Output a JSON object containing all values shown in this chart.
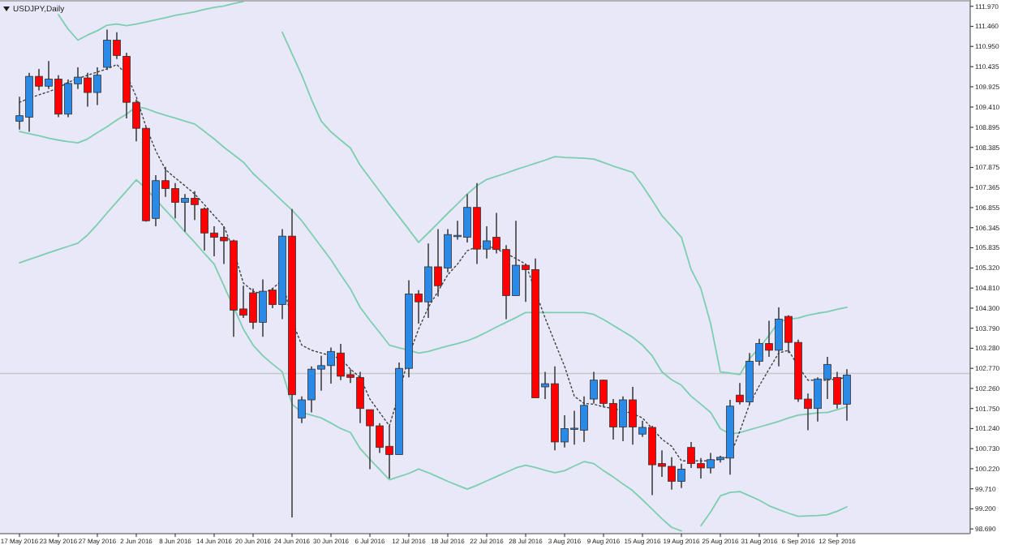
{
  "chart_data": {
    "type": "candlestick",
    "title": "USDJPY,Daily",
    "categories": [
      "17 May 2016",
      null,
      null,
      null,
      "23 May 2016",
      null,
      null,
      null,
      "27 May 2016",
      null,
      null,
      null,
      "2 Jun 2016",
      null,
      null,
      null,
      "8 Jun 2016",
      null,
      null,
      null,
      "14 Jun 2016",
      null,
      null,
      null,
      "20 Jun 2016",
      null,
      null,
      null,
      "24 Jun 2016",
      null,
      null,
      null,
      "30 Jun 2016",
      null,
      null,
      null,
      "6 Jul 2016",
      null,
      null,
      null,
      "12 Jul 2016",
      null,
      null,
      null,
      "18 Jul 2016",
      null,
      null,
      null,
      "22 Jul 2016",
      null,
      null,
      null,
      "28 Jul 2016",
      null,
      null,
      null,
      "3 Aug 2016",
      null,
      null,
      null,
      "9 Aug 2016",
      null,
      null,
      null,
      "15 Aug 2016",
      null,
      null,
      null,
      "19 Aug 2016",
      null,
      null,
      null,
      "25 Aug 2016",
      null,
      null,
      null,
      "31 Aug 2016",
      null,
      null,
      null,
      "6 Sep 2016",
      null,
      null,
      null,
      "12 Sep 2016",
      null
    ],
    "ohlc": [
      [
        109.05,
        109.67,
        108.84,
        109.19
      ],
      [
        109.15,
        110.28,
        108.78,
        110.19
      ],
      [
        110.19,
        110.38,
        109.83,
        109.94
      ],
      [
        109.94,
        110.58,
        109.87,
        110.12
      ],
      [
        110.12,
        110.22,
        109.15,
        109.23
      ],
      [
        109.23,
        110.11,
        109.15,
        110.01
      ],
      [
        110.0,
        110.42,
        109.87,
        110.17
      ],
      [
        110.15,
        110.28,
        109.42,
        109.78
      ],
      [
        109.78,
        110.42,
        109.46,
        110.22
      ],
      [
        110.42,
        111.38,
        110.35,
        111.11
      ],
      [
        111.11,
        111.31,
        110.63,
        110.72
      ],
      [
        110.7,
        110.79,
        109.12,
        109.53
      ],
      [
        109.53,
        109.6,
        108.54,
        108.87
      ],
      [
        108.87,
        108.9,
        106.5,
        106.52
      ],
      [
        106.58,
        107.68,
        106.38,
        107.54
      ],
      [
        107.54,
        107.89,
        107.13,
        107.34
      ],
      [
        107.34,
        107.48,
        106.58,
        106.99
      ],
      [
        106.99,
        107.2,
        106.24,
        107.09
      ],
      [
        107.09,
        107.27,
        106.54,
        106.93
      ],
      [
        106.82,
        106.86,
        105.76,
        106.21
      ],
      [
        106.21,
        106.38,
        105.62,
        106.1
      ],
      [
        106.1,
        106.38,
        105.42,
        106.01
      ],
      [
        106.01,
        106.04,
        103.57,
        104.25
      ],
      [
        104.28,
        104.87,
        104.05,
        104.12
      ],
      [
        104.69,
        104.8,
        103.77,
        103.94
      ],
      [
        103.94,
        105.03,
        103.57,
        104.73
      ],
      [
        104.76,
        104.8,
        104.3,
        104.39
      ],
      [
        104.39,
        106.31,
        104.02,
        106.13
      ],
      [
        106.13,
        106.82,
        98.98,
        102.1
      ],
      [
        101.51,
        102.06,
        101.38,
        101.97
      ],
      [
        101.97,
        102.82,
        101.65,
        102.75
      ],
      [
        102.75,
        103.09,
        102.2,
        102.84
      ],
      [
        102.84,
        103.3,
        102.38,
        103.2
      ],
      [
        103.16,
        103.39,
        102.47,
        102.57
      ],
      [
        102.61,
        102.75,
        102.4,
        102.54
      ],
      [
        102.54,
        102.68,
        101.38,
        101.75
      ],
      [
        101.72,
        101.72,
        100.21,
        101.31
      ],
      [
        101.31,
        101.38,
        100.62,
        100.76
      ],
      [
        100.79,
        101.31,
        99.97,
        100.58
      ],
      [
        100.58,
        102.92,
        100.58,
        102.77
      ],
      [
        102.77,
        105.01,
        102.54,
        104.66
      ],
      [
        104.66,
        104.76,
        103.91,
        104.46
      ],
      [
        104.46,
        105.94,
        104.05,
        105.35
      ],
      [
        105.35,
        106.31,
        104.6,
        104.87
      ],
      [
        105.32,
        106.31,
        105.21,
        106.17
      ],
      [
        106.14,
        106.52,
        106.04,
        106.15
      ],
      [
        106.1,
        107.2,
        105.97,
        106.86
      ],
      [
        106.86,
        107.48,
        105.42,
        105.8
      ],
      [
        105.8,
        106.38,
        105.56,
        106.01
      ],
      [
        106.1,
        106.72,
        105.69,
        105.79
      ],
      [
        105.79,
        105.9,
        104.02,
        104.62
      ],
      [
        104.62,
        106.52,
        104.62,
        105.39
      ],
      [
        105.39,
        105.42,
        104.46,
        105.28
      ],
      [
        105.28,
        105.56,
        102.02,
        102.02
      ],
      [
        102.3,
        102.68,
        101.99,
        102.38
      ],
      [
        102.38,
        102.82,
        100.69,
        100.9
      ],
      [
        100.9,
        101.58,
        100.76,
        101.24
      ],
      [
        101.24,
        101.69,
        100.83,
        101.25
      ],
      [
        101.2,
        102.06,
        100.9,
        101.83
      ],
      [
        101.99,
        102.68,
        101.88,
        102.47
      ],
      [
        102.47,
        102.48,
        101.79,
        101.88
      ],
      [
        101.88,
        101.99,
        100.96,
        101.28
      ],
      [
        101.28,
        102.06,
        100.92,
        101.97
      ],
      [
        101.97,
        102.3,
        100.83,
        101.28
      ],
      [
        101.1,
        101.44,
        101.03,
        101.27
      ],
      [
        101.27,
        101.31,
        99.55,
        100.32
      ],
      [
        100.35,
        100.69,
        100.01,
        100.28
      ],
      [
        100.28,
        100.51,
        99.69,
        99.9
      ],
      [
        99.9,
        100.35,
        99.73,
        100.21
      ],
      [
        100.76,
        100.9,
        100.24,
        100.35
      ],
      [
        100.35,
        100.49,
        99.97,
        100.24
      ],
      [
        100.24,
        100.62,
        100.1,
        100.45
      ],
      [
        100.45,
        100.55,
        100.38,
        100.51
      ],
      [
        100.49,
        101.97,
        100.07,
        101.81
      ],
      [
        102.09,
        102.4,
        101.85,
        101.92
      ],
      [
        101.92,
        103.16,
        101.85,
        102.95
      ],
      [
        102.95,
        103.52,
        102.84,
        103.4
      ],
      [
        103.4,
        103.98,
        103.06,
        103.23
      ],
      [
        103.23,
        104.32,
        102.82,
        104.02
      ],
      [
        104.09,
        104.12,
        103.16,
        103.43
      ],
      [
        103.43,
        103.5,
        101.92,
        101.99
      ],
      [
        101.99,
        102.13,
        101.2,
        101.75
      ],
      [
        101.75,
        102.54,
        101.42,
        102.5
      ],
      [
        102.5,
        103.06,
        101.99,
        102.87
      ],
      [
        102.54,
        102.68,
        101.75,
        101.86
      ],
      [
        101.86,
        102.75,
        101.44,
        102.6
      ]
    ],
    "colors": [
      "#2a8ae6",
      "#2a8ae6",
      "#ff0000",
      "#2a8ae6",
      "#ff0000",
      "#2a8ae6",
      "#2a8ae6",
      "#ff0000",
      "#2a8ae6",
      "#2a8ae6",
      "#ff0000",
      "#ff0000",
      "#ff0000",
      "#ff0000",
      "#2a8ae6",
      "#ff0000",
      "#ff0000",
      "#2a8ae6",
      "#ff0000",
      "#ff0000",
      "#ff0000",
      "#ff0000",
      "#ff0000",
      "#ff0000",
      "#ff0000",
      "#2a8ae6",
      "#ff0000",
      "#2a8ae6",
      "#ff0000",
      "#2a8ae6",
      "#2a8ae6",
      "#2a8ae6",
      "#2a8ae6",
      "#ff0000",
      "#ff0000",
      "#ff0000",
      "#ff0000",
      "#ff0000",
      "#ff0000",
      "#2a8ae6",
      "#2a8ae6",
      "#ff0000",
      "#2a8ae6",
      "#ff0000",
      "#2a8ae6",
      "#2a8ae6",
      "#2a8ae6",
      "#ff0000",
      "#2a8ae6",
      "#ff0000",
      "#ff0000",
      "#2a8ae6",
      "#ff0000",
      "#ff0000",
      "#2a8ae6",
      "#ff0000",
      "#2a8ae6",
      "#2a8ae6",
      "#2a8ae6",
      "#2a8ae6",
      "#ff0000",
      "#ff0000",
      "#2a8ae6",
      "#ff0000",
      "#2a8ae6",
      "#ff0000",
      "#ff0000",
      "#ff0000",
      "#2a8ae6",
      "#ff0000",
      "#ff0000",
      "#2a8ae6",
      "#2a8ae6",
      "#2a8ae6",
      "#ff0000",
      "#2a8ae6",
      "#2a8ae6",
      "#ff0000",
      "#2a8ae6",
      "#ff0000",
      "#ff0000",
      "#ff0000",
      "#2a8ae6",
      "#2a8ae6",
      "#ff0000",
      "#2a8ae6"
    ],
    "series": [
      {
        "type": "line",
        "color": "#7ccfae",
        "values": [
          null,
          null,
          null,
          null,
          111.76,
          111.39,
          111.11,
          111.24,
          111.35,
          111.49,
          111.52,
          111.48,
          111.52,
          111.57,
          111.63,
          111.68,
          111.74,
          111.78,
          111.83,
          111.89,
          111.94,
          111.98,
          112.04,
          112.09,
          null,
          null,
          null,
          111.31,
          110.76,
          110.22,
          109.6,
          109.05,
          108.78,
          108.57,
          108.37,
          107.93,
          107.6,
          107.27,
          106.94,
          106.62,
          106.3,
          105.97,
          106.21,
          106.46,
          106.71,
          106.95,
          107.2,
          107.41,
          107.57,
          107.65,
          107.73,
          107.82,
          107.9,
          107.98,
          108.06,
          108.15,
          108.13,
          108.12,
          108.11,
          108.09,
          108.0,
          107.91,
          107.83,
          107.75,
          107.41,
          107.04,
          106.65,
          106.38,
          106.1,
          105.28,
          104.8,
          103.91,
          102.68,
          102.65,
          102.61,
          103.02,
          103.29,
          103.61,
          103.95,
          104.02,
          104.05,
          104.12,
          104.17,
          104.21,
          104.27,
          104.32
        ]
      },
      {
        "type": "line",
        "color": "#7ccfae",
        "values": [
          108.79,
          108.73,
          108.68,
          108.62,
          108.57,
          108.53,
          108.5,
          108.6,
          108.76,
          108.91,
          109.08,
          109.23,
          109.42,
          109.37,
          109.28,
          109.2,
          109.13,
          109.05,
          108.98,
          108.79,
          108.6,
          108.39,
          108.2,
          108.01,
          107.72,
          107.49,
          107.26,
          107.02,
          106.79,
          106.52,
          106.19,
          105.86,
          105.53,
          105.15,
          104.79,
          104.32,
          103.99,
          103.68,
          103.36,
          103.29,
          103.23,
          103.16,
          103.2,
          103.27,
          103.34,
          103.4,
          103.47,
          103.57,
          103.69,
          103.82,
          103.94,
          104.06,
          104.19,
          104.19,
          104.19,
          104.19,
          104.19,
          104.19,
          104.19,
          104.14,
          104.01,
          103.86,
          103.71,
          103.56,
          103.36,
          103.09,
          102.68,
          102.48,
          102.34,
          102.06,
          101.86,
          101.65,
          101.24,
          101.1,
          101.14,
          101.21,
          101.28,
          101.35,
          101.42,
          101.51,
          101.58,
          101.61,
          101.64,
          101.65,
          101.72,
          101.79
        ]
      },
      {
        "type": "line",
        "color": "#7ccfae",
        "values": [
          105.45,
          105.54,
          105.62,
          105.71,
          105.79,
          105.87,
          105.95,
          106.16,
          106.43,
          106.72,
          107.0,
          107.28,
          107.56,
          107.34,
          107.06,
          106.79,
          106.52,
          106.24,
          105.97,
          105.69,
          105.42,
          104.87,
          104.32,
          103.77,
          103.36,
          103.09,
          102.88,
          102.68,
          101.86,
          101.65,
          101.58,
          101.51,
          101.38,
          101.24,
          101.14,
          100.73,
          100.46,
          100.2,
          99.94,
          100.02,
          100.1,
          100.21,
          100.12,
          100.01,
          99.9,
          99.8,
          99.7,
          99.8,
          99.91,
          100.02,
          100.13,
          100.24,
          100.31,
          100.25,
          100.18,
          100.12,
          100.17,
          100.29,
          100.4,
          100.35,
          100.17,
          100.01,
          99.83,
          99.66,
          99.43,
          99.19,
          98.95,
          98.73,
          98.64,
          null,
          98.77,
          99.12,
          99.53,
          99.62,
          99.64,
          99.53,
          99.42,
          99.28,
          99.18,
          99.09,
          99.01,
          99.02,
          99.03,
          99.05,
          99.14,
          99.25
        ]
      },
      {
        "type": "line",
        "color": "#404040",
        "line_style": "dotted",
        "values": [
          109.53,
          109.63,
          109.72,
          109.8,
          109.9,
          110.04,
          110.13,
          110.22,
          110.3,
          110.38,
          110.49,
          110.24,
          109.67,
          108.91,
          108.3,
          107.82,
          107.61,
          107.41,
          107.2,
          106.93,
          106.65,
          106.38,
          105.76,
          104.94,
          104.73,
          104.66,
          104.8,
          105.01,
          103.98,
          103.36,
          103.23,
          103.16,
          103.09,
          103.02,
          102.75,
          102.54,
          101.99,
          101.65,
          101.31,
          102.13,
          103.09,
          103.77,
          104.32,
          104.73,
          105.15,
          105.42,
          105.76,
          105.86,
          105.89,
          105.8,
          105.69,
          105.56,
          105.42,
          104.73,
          104.05,
          103.43,
          102.82,
          102.06,
          101.88,
          101.86,
          101.79,
          101.75,
          101.69,
          101.62,
          101.51,
          101.24,
          100.97,
          100.79,
          100.42,
          100.42,
          100.42,
          100.42,
          100.46,
          100.54,
          101.17,
          101.86,
          102.33,
          102.75,
          103.16,
          103.23,
          102.82,
          102.47,
          102.47,
          102.47,
          102.5,
          102.54
        ]
      }
    ],
    "ref_lines": [
      {
        "axis": "y",
        "value": 102.64,
        "color": "#c8c8c8"
      }
    ],
    "ylim": [
      98.57,
      112.13
    ],
    "yticks": [
      {
        "value": 111.97,
        "label": "111.970"
      },
      {
        "value": 111.46,
        "label": "111.460"
      },
      {
        "value": 110.95,
        "label": "110.950"
      },
      {
        "value": 110.435,
        "label": "110.435"
      },
      {
        "value": 109.925,
        "label": "109.925"
      },
      {
        "value": 109.41,
        "label": "109.410"
      },
      {
        "value": 108.895,
        "label": "108.895"
      },
      {
        "value": 108.385,
        "label": "108.385"
      },
      {
        "value": 107.875,
        "label": "107.875"
      },
      {
        "value": 107.365,
        "label": "107.365"
      },
      {
        "value": 106.855,
        "label": "106.855"
      },
      {
        "value": 106.345,
        "label": "106.345"
      },
      {
        "value": 105.835,
        "label": "105.835"
      },
      {
        "value": 105.32,
        "label": "105.320"
      },
      {
        "value": 104.81,
        "label": "104.810"
      },
      {
        "value": 104.3,
        "label": "104.300"
      },
      {
        "value": 103.79,
        "label": "103.790"
      },
      {
        "value": 103.28,
        "label": "103.280"
      },
      {
        "value": 102.77,
        "label": "102.770"
      },
      {
        "value": 102.26,
        "label": "102.260"
      },
      {
        "value": 101.75,
        "label": "101.750"
      },
      {
        "value": 101.24,
        "label": "101.240"
      },
      {
        "value": 100.73,
        "label": "100.730"
      },
      {
        "value": 100.22,
        "label": "100.220"
      },
      {
        "value": 99.71,
        "label": "99.710"
      },
      {
        "value": 99.2,
        "label": "99.200"
      },
      {
        "value": 98.69,
        "label": "98.690"
      }
    ],
    "grid": false,
    "marker": "none"
  }
}
